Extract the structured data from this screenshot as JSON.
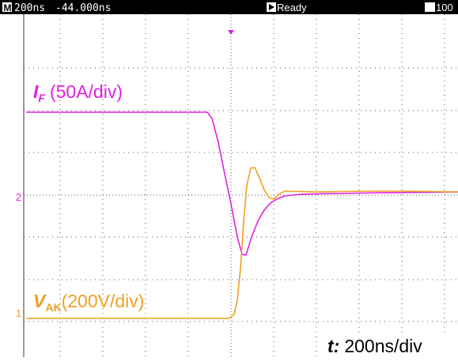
{
  "status_bar": {
    "mode": "M",
    "timebase": "200ns",
    "delay": "-44.000ns",
    "state": "Ready",
    "count": "100"
  },
  "channels": [
    {
      "marker": "2",
      "symbol": "I",
      "subscript": "F",
      "scale": "(50A/div)"
    },
    {
      "marker": "1",
      "symbol": "V",
      "subscript": "AK",
      "scale": "(200V/div)"
    }
  ],
  "time_scale": {
    "symbol": "t:",
    "scale": "200ns/div"
  }
}
